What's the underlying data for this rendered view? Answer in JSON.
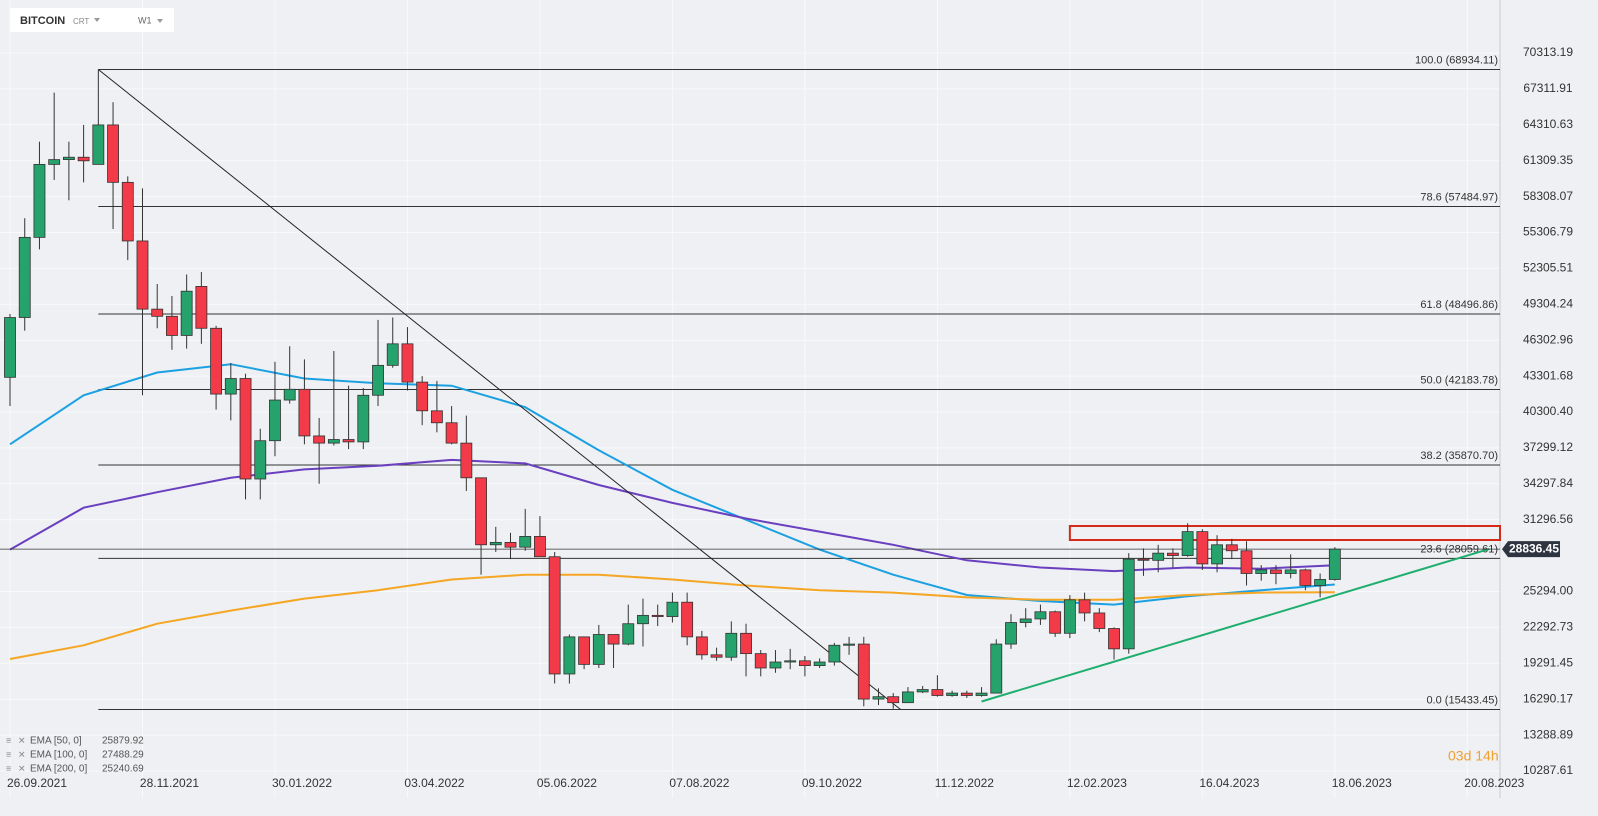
{
  "header": {
    "symbol": "BITCOIN",
    "tag": "CRT",
    "interval": "W1"
  },
  "countdown": "03d 14h",
  "chart_data": {
    "type": "candlestick",
    "xlim": [
      -0.68,
      101.22
    ],
    "ylim": [
      8031,
      74744
    ],
    "grid": true,
    "yticks": [
      70313.19,
      67311.91,
      64310.63,
      61309.35,
      58308.07,
      55306.79,
      52305.51,
      49304.24,
      46302.96,
      43301.68,
      {
        "value": 40300.4,
        "label": "40300.40"
      },
      37299.12,
      34297.84,
      31296.56,
      {
        "value": 25294,
        "label": "25294.00"
      },
      22292.73,
      19291.45,
      16290.17,
      13288.89,
      10287.61
    ],
    "xticks": [
      {
        "value": 0,
        "label": "26.09.2021"
      },
      {
        "value": 9,
        "label": "28.11.2021"
      },
      {
        "value": 18,
        "label": "30.01.2022"
      },
      {
        "value": 27,
        "label": "03.04.2022"
      },
      {
        "value": 36,
        "label": "05.06.2022"
      },
      {
        "value": 45,
        "label": "07.08.2022"
      },
      {
        "value": 54,
        "label": "09.10.2022"
      },
      {
        "value": 63,
        "label": "11.12.2022"
      },
      {
        "value": 72,
        "label": "12.02.2023"
      },
      {
        "value": 81,
        "label": "16.04.2023"
      },
      {
        "value": 90,
        "label": "18.06.2023"
      },
      {
        "value": 99,
        "label": "20.08.2023"
      }
    ],
    "up_color": "#26a36c",
    "down_color": "#f23a48",
    "open": [
      43200,
      48200,
      54900,
      61000,
      61400,
      61600,
      61000,
      64300,
      59500,
      54600,
      48900,
      48300,
      46700,
      50800,
      47300,
      41800,
      43100,
      34700,
      37900,
      41300,
      42200,
      38300,
      37700,
      38000,
      37800,
      41700,
      44200,
      46000,
      42800,
      40400,
      39400,
      37700,
      34800,
      29200,
      29400,
      29000,
      29900,
      28200,
      18400,
      21500,
      19200,
      21700,
      20900,
      22600,
      23300,
      23200,
      24400,
      21500,
      20000,
      19800,
      21800,
      20100,
      18900,
      19400,
      19500,
      19100,
      19400,
      20800,
      20900,
      16300,
      16500,
      16000,
      16900,
      17100,
      16600,
      16800,
      16600,
      16800,
      20900,
      22700,
      23000,
      23600,
      21800,
      24600,
      23500,
      22200,
      20500,
      28000,
      27900,
      28500,
      28300,
      30300,
      27600,
      29200,
      28700,
      26800,
      27100,
      26800,
      27100,
      25800,
      26300
    ],
    "high": [
      48500,
      56500,
      62900,
      67000,
      62900,
      64300,
      68934.11,
      66200,
      60000,
      59000,
      51000,
      50000,
      51800,
      52000,
      47500,
      44400,
      43500,
      38900,
      44500,
      45800,
      44700,
      39800,
      45400,
      42500,
      42300,
      48000,
      48200,
      47400,
      43300,
      42900,
      40800,
      40000,
      34800,
      30700,
      30200,
      32200,
      31600,
      28600,
      21700,
      21500,
      22500,
      21700,
      24200,
      24700,
      24200,
      25200,
      25200,
      22000,
      20600,
      22800,
      22600,
      20400,
      20400,
      20500,
      19900,
      19700,
      21000,
      21500,
      21500,
      17200,
      16800,
      17300,
      17400,
      18300,
      17000,
      17000,
      17300,
      21300,
      23400,
      23900,
      24200,
      23700,
      25000,
      25200,
      23900,
      22300,
      28500,
      28900,
      29200,
      28900,
      31000,
      30500,
      30000,
      29700,
      29500,
      27500,
      27500,
      28400,
      27200,
      26800,
      29000
    ],
    "low": [
      40800,
      47100,
      53900,
      59700,
      58000,
      59500,
      61000,
      55600,
      53000,
      41700,
      47300,
      45500,
      45600,
      46000,
      40500,
      39600,
      33000,
      33000,
      36600,
      41000,
      37600,
      34300,
      37500,
      37200,
      37200,
      40800,
      44000,
      42100,
      39200,
      38600,
      37600,
      33700,
      26700,
      28600,
      28000,
      28700,
      28500,
      17600,
      17600,
      18800,
      18900,
      18900,
      20800,
      20700,
      22400,
      22700,
      20800,
      19600,
      19500,
      19500,
      18200,
      18200,
      18500,
      18800,
      18200,
      18900,
      19100,
      20000,
      15700,
      15800,
      15500,
      16000,
      16800,
      16500,
      16500,
      16400,
      16500,
      16800,
      20500,
      22300,
      22500,
      21500,
      21400,
      22800,
      21900,
      19600,
      20100,
      26600,
      26900,
      27300,
      28200,
      27100,
      26900,
      28000,
      25800,
      26200,
      25900,
      26400,
      25400,
      24800,
      26200
    ],
    "close": [
      48200,
      54900,
      61000,
      61400,
      61600,
      61300,
      64300,
      59500,
      54600,
      48900,
      48300,
      46700,
      50400,
      47300,
      41800,
      43100,
      34700,
      37900,
      41300,
      42200,
      38300,
      37700,
      38000,
      37800,
      41700,
      44200,
      46000,
      42800,
      40400,
      39400,
      37700,
      34800,
      29200,
      29400,
      29000,
      29900,
      28200,
      18400,
      21500,
      19200,
      21700,
      20900,
      22600,
      23300,
      23200,
      24400,
      21500,
      20000,
      19800,
      21800,
      20100,
      18900,
      19400,
      19500,
      19100,
      19400,
      20800,
      20900,
      16300,
      16500,
      16000,
      16900,
      17100,
      16600,
      16800,
      16600,
      16800,
      20900,
      22700,
      23000,
      23600,
      21800,
      24600,
      23500,
      22200,
      20500,
      28000,
      27900,
      28500,
      28300,
      30300,
      27600,
      29200,
      28700,
      26800,
      27100,
      26800,
      27100,
      25800,
      26300,
      28836.45
    ],
    "lines": [
      {
        "name": "EMA [50, 0]",
        "last": 25879.92,
        "color": "#1ba1e2",
        "x": [
          0,
          5,
          10,
          15,
          20,
          25,
          30,
          35,
          40,
          45,
          50,
          55,
          60,
          65,
          70,
          75,
          80,
          85,
          90
        ],
        "values": [
          37600,
          41700,
          43600,
          44300,
          43100,
          42700,
          42500,
          40700,
          37100,
          33800,
          31300,
          28800,
          26700,
          25000,
          24500,
          24200,
          24900,
          25400,
          25880
        ]
      },
      {
        "name": "EMA [100, 0]",
        "last": 27488.29,
        "color": "#6a3fc0",
        "x": [
          0,
          5,
          10,
          15,
          20,
          25,
          30,
          35,
          40,
          45,
          50,
          55,
          60,
          65,
          70,
          75,
          80,
          85,
          90
        ],
        "values": [
          28800,
          32300,
          33600,
          34800,
          35500,
          35800,
          36300,
          36000,
          34200,
          32700,
          31400,
          30300,
          29200,
          27900,
          27300,
          27000,
          27300,
          27200,
          27490
        ]
      },
      {
        "name": "EMA [200, 0]",
        "last": 25240.69,
        "color": "#f5a623",
        "x": [
          0,
          5,
          10,
          15,
          20,
          25,
          30,
          35,
          40,
          45,
          50,
          55,
          60,
          65,
          70,
          75,
          80,
          85,
          90
        ],
        "values": [
          19650,
          20800,
          22600,
          23700,
          24700,
          25400,
          26300,
          26700,
          26700,
          26300,
          25800,
          25400,
          25200,
          24800,
          24600,
          24600,
          25000,
          25200,
          25240
        ]
      }
    ],
    "fib": {
      "x": [
        6,
        101.22
      ],
      "levels": [
        {
          "label": "100.0 (68934.11)",
          "value": 68934.11
        },
        {
          "label": "78.6 (57484.97)",
          "value": 57484.97
        },
        {
          "label": "61.8 (48496.86)",
          "value": 48496.86
        },
        {
          "label": "50.0 (42183.78)",
          "value": 42183.78
        },
        {
          "label": "38.2 (35870.70)",
          "value": 35870.7
        },
        {
          "label": "23.6 (28059.61)",
          "value": 28059.61
        },
        {
          "label": "0.0 (15433.45)",
          "value": 15433.45
        }
      ]
    },
    "trendlines": [
      {
        "x": [
          6,
          60.5
        ],
        "values": [
          68934.11,
          15433.45
        ],
        "color": "#222222"
      },
      {
        "x": [
          66,
          100.5
        ],
        "values": [
          16100,
          28850
        ],
        "color": "#1fae6e"
      }
    ],
    "zone": {
      "x": [
        72,
        101.22
      ],
      "values": [
        29600,
        30770
      ],
      "color": "#d42a1a"
    }
  }
}
